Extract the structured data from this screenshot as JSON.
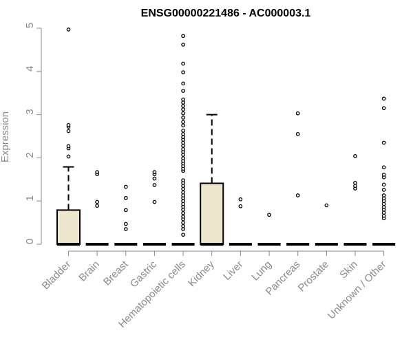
{
  "chart_data": {
    "type": "box",
    "title": "ENSG00000221486 - AC000003.1",
    "xlabel": "",
    "ylabel": "Expression",
    "ylim": [
      0,
      5
    ],
    "yticks": [
      0,
      1,
      2,
      3,
      4,
      5
    ],
    "grid": false,
    "legend": "none",
    "colors": {
      "box_fill": "#ede7d0",
      "box_stroke": "#000000",
      "axis": "#8a8a8a",
      "text": "#8a8a8a"
    },
    "categories": [
      "Bladder",
      "Brain",
      "Breast",
      "Gastric",
      "Hematopoietic cells",
      "Kidney",
      "Liver",
      "Lung",
      "Pancreas",
      "Prostate",
      "Skin",
      "Unknown / Other"
    ],
    "boxes": [
      {
        "q1": 0,
        "median": 0,
        "q3": 0.79,
        "whisker_low": 0,
        "whisker_high": 1.79,
        "outliers": [
          2.03,
          2.22,
          2.27,
          2.62,
          2.72,
          2.76,
          4.97
        ]
      },
      {
        "q1": 0,
        "median": 0,
        "q3": 0,
        "whisker_low": 0,
        "whisker_high": 0,
        "outliers": [
          0.89,
          0.98,
          1.62,
          1.67
        ]
      },
      {
        "q1": 0,
        "median": 0,
        "q3": 0,
        "whisker_low": 0,
        "whisker_high": 0,
        "outliers": [
          0.35,
          0.47,
          0.79,
          1.07,
          1.33
        ]
      },
      {
        "q1": 0,
        "median": 0,
        "q3": 0,
        "whisker_low": 0,
        "whisker_high": 0,
        "outliers": [
          0.98,
          1.37,
          1.52,
          1.62,
          1.67
        ]
      },
      {
        "q1": 0,
        "median": 0,
        "q3": 0,
        "whisker_low": 0,
        "whisker_high": 0,
        "outliers": [
          0.22,
          0.35,
          0.42,
          0.5,
          0.58,
          0.64,
          0.72,
          0.8,
          0.87,
          0.93,
          1.0,
          1.07,
          1.13,
          1.2,
          1.28,
          1.35,
          1.42,
          1.48,
          1.7,
          1.75,
          1.81,
          1.87,
          1.93,
          1.99,
          2.07,
          2.14,
          2.2,
          2.28,
          2.35,
          2.42,
          2.48,
          2.55,
          2.63,
          2.75,
          2.83,
          2.93,
          3.03,
          3.12,
          3.2,
          3.28,
          3.35,
          3.55,
          3.72,
          3.98,
          4.18,
          4.62,
          4.82
        ]
      },
      {
        "q1": 0,
        "median": 0,
        "q3": 1.41,
        "whisker_low": 0,
        "whisker_high": 3.0,
        "outliers": []
      },
      {
        "q1": 0,
        "median": 0,
        "q3": 0,
        "whisker_low": 0,
        "whisker_high": 0,
        "outliers": [
          0.88,
          1.04
        ]
      },
      {
        "q1": 0,
        "median": 0,
        "q3": 0,
        "whisker_low": 0,
        "whisker_high": 0,
        "outliers": [
          0.68
        ]
      },
      {
        "q1": 0,
        "median": 0,
        "q3": 0,
        "whisker_low": 0,
        "whisker_high": 0,
        "outliers": [
          1.13,
          2.55,
          3.03
        ]
      },
      {
        "q1": 0,
        "median": 0,
        "q3": 0,
        "whisker_low": 0,
        "whisker_high": 0,
        "outliers": [
          0.9
        ]
      },
      {
        "q1": 0,
        "median": 0,
        "q3": 0,
        "whisker_low": 0,
        "whisker_high": 0,
        "outliers": [
          1.29,
          1.35,
          1.42,
          2.04
        ]
      },
      {
        "q1": 0,
        "median": 0,
        "q3": 0,
        "whisker_low": 0,
        "whisker_high": 0,
        "outliers": [
          0.6,
          0.66,
          0.73,
          0.8,
          0.86,
          0.93,
          1.0,
          1.06,
          1.13,
          1.26,
          1.38,
          1.55,
          1.61,
          1.78,
          2.35,
          3.15,
          3.37
        ]
      }
    ]
  }
}
